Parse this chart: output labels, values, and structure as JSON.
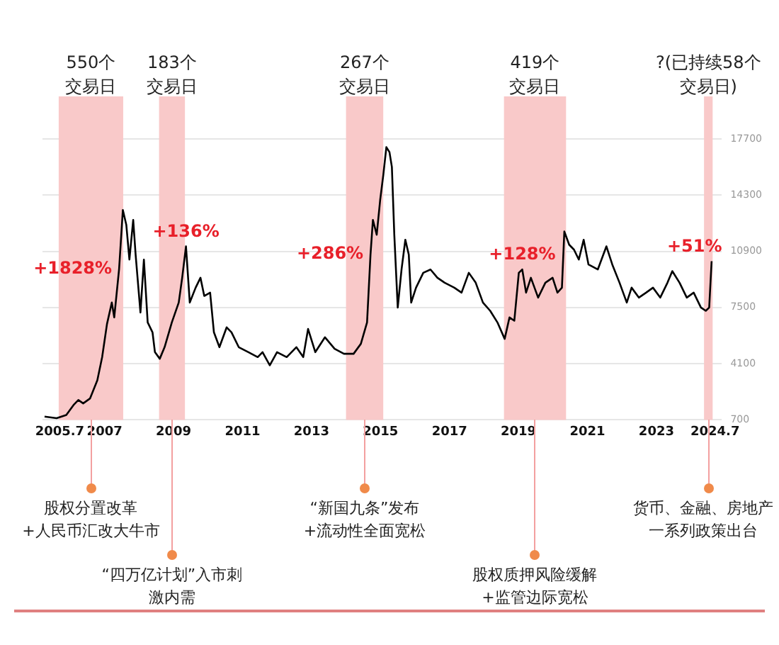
{
  "chart_data": {
    "type": "line",
    "marker": "none",
    "grid": "y",
    "legend": false,
    "x": [
      2005.26,
      2005.61,
      2005.89,
      2006.1,
      2006.24,
      2006.38,
      2006.58,
      2006.79,
      2006.93,
      2007.07,
      2007.21,
      2007.28,
      2007.42,
      2007.53,
      2007.63,
      2007.72,
      2007.83,
      2007.9,
      2008.04,
      2008.14,
      2008.25,
      2008.39,
      2008.46,
      2008.6,
      2008.74,
      2008.95,
      2009.15,
      2009.25,
      2009.36,
      2009.47,
      2009.64,
      2009.78,
      2009.89,
      2010.06,
      2010.17,
      2010.33,
      2010.54,
      2010.68,
      2010.89,
      2011.17,
      2011.44,
      2011.58,
      2011.79,
      2012.0,
      2012.28,
      2012.56,
      2012.76,
      2012.9,
      2013.11,
      2013.39,
      2013.67,
      2013.94,
      2014.22,
      2014.43,
      2014.61,
      2014.71,
      2014.78,
      2014.89,
      2014.99,
      2015.08,
      2015.17,
      2015.26,
      2015.33,
      2015.4,
      2015.5,
      2015.61,
      2015.72,
      2015.82,
      2015.89,
      2016.03,
      2016.24,
      2016.45,
      2016.65,
      2016.86,
      2017.14,
      2017.35,
      2017.56,
      2017.76,
      2017.97,
      2018.18,
      2018.39,
      2018.6,
      2018.74,
      2018.88,
      2019.01,
      2019.11,
      2019.22,
      2019.36,
      2019.57,
      2019.78,
      2019.99,
      2020.13,
      2020.26,
      2020.33,
      2020.47,
      2020.61,
      2020.75,
      2020.89,
      2021.03,
      2021.3,
      2021.55,
      2021.72,
      2021.93,
      2022.14,
      2022.28,
      2022.49,
      2022.7,
      2022.9,
      2023.11,
      2023.32,
      2023.46,
      2023.67,
      2023.88,
      2024.08,
      2024.29,
      2024.43,
      2024.53,
      2024.6
    ],
    "series": [
      {
        "color": "#000000",
        "values": [
          900,
          800,
          1000,
          1600,
          1900,
          1700,
          2000,
          3100,
          4500,
          6500,
          7800,
          6900,
          9800,
          13400,
          12500,
          10400,
          12800,
          10700,
          7200,
          10400,
          6600,
          6000,
          4800,
          4400,
          5100,
          6600,
          7800,
          9300,
          11200,
          7800,
          8700,
          9300,
          8200,
          8400,
          6000,
          5100,
          6300,
          6000,
          5100,
          4800,
          4500,
          4800,
          4000,
          4800,
          4500,
          5100,
          4500,
          6200,
          4800,
          5700,
          5000,
          4700,
          4700,
          5300,
          6600,
          10700,
          12800,
          11900,
          14000,
          15500,
          17200,
          16900,
          16000,
          11900,
          7500,
          9800,
          11600,
          10700,
          7800,
          8700,
          9600,
          9800,
          9300,
          9000,
          8700,
          8400,
          9600,
          9000,
          7800,
          7300,
          6600,
          5600,
          6900,
          6700,
          9600,
          9800,
          8400,
          9300,
          8100,
          9000,
          9300,
          8400,
          8700,
          12100,
          11300,
          11000,
          10400,
          11600,
          10100,
          9800,
          11200,
          10100,
          9000,
          7800,
          8700,
          8100,
          8400,
          8700,
          8100,
          9000,
          9700,
          9000,
          8100,
          8400,
          7500,
          7300,
          7500,
          10300
        ]
      }
    ],
    "xlim": [
      2005.2,
      2024.9
    ],
    "xticks": [
      2005.7,
      2007,
      2009,
      2011,
      2013,
      2015,
      2017,
      2019,
      2021,
      2023,
      2024.7
    ],
    "ylim": [
      700,
      17700
    ],
    "yticks": [
      700,
      4100,
      7500,
      10900,
      14300,
      17700
    ],
    "bands": [
      {
        "axis": "x",
        "from": 2005.67,
        "to": 2007.54,
        "label": "550个交易日",
        "color": "#f9c9c9"
      },
      {
        "axis": "x",
        "from": 2008.58,
        "to": 2009.33,
        "label": "183个交易日",
        "color": "#f9c9c9"
      },
      {
        "axis": "x",
        "from": 2014.0,
        "to": 2015.08,
        "label": "267个交易日",
        "color": "#f9c9c9"
      },
      {
        "axis": "x",
        "from": 2018.58,
        "to": 2020.38,
        "label": "419个交易日",
        "color": "#f9c9c9"
      },
      {
        "axis": "x",
        "from": 2024.38,
        "to": 2024.63,
        "label": "?(已持续58个交易日)",
        "color": "#f9c9c9"
      }
    ],
    "annotations": [
      {
        "text": "+1828%",
        "x": 2007.42,
        "y": 9800
      },
      {
        "text": "+136%",
        "x": 2009.36,
        "y": 11200
      },
      {
        "text": "+286%",
        "x": 2014.71,
        "y": 10700
      },
      {
        "text": "+128%",
        "x": 2019.11,
        "y": 9800
      },
      {
        "text": "+51%",
        "x": 2024.6,
        "y": 10300
      },
      "股权分置改革+人民币汇改大牛市",
      "“四万亿计划”入市刺激内需",
      "“新国九条”发布+流动性全面宽松",
      "股权质押风险缓解+监管边际宽松",
      "货币、金融、房地产一系列政策出台"
    ]
  }
}
